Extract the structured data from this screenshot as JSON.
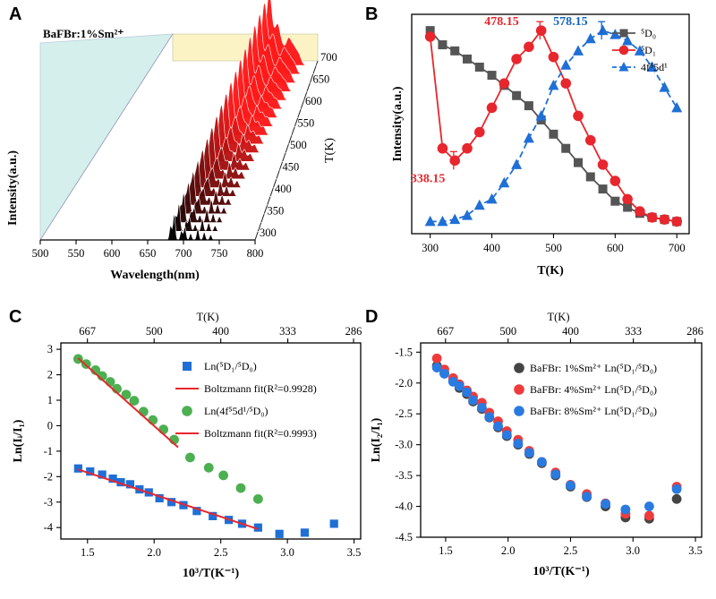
{
  "panels": {
    "A": "A",
    "B": "B",
    "C": "C",
    "D": "D"
  },
  "chart_data": [
    {
      "panel": "A",
      "type": "area",
      "title": "BaFBr:1%Sm²⁺",
      "xlabel": "Wavelength(nm)",
      "ylabel": "Intensity(a.u.)",
      "zlabel": "T(K)",
      "x_ticks": [
        "500",
        "550",
        "600",
        "650",
        "700",
        "750",
        "800"
      ],
      "z_ticks": [
        "300",
        "350",
        "400",
        "450",
        "500",
        "550",
        "600",
        "650",
        "700"
      ],
      "xlim": [
        500,
        800
      ],
      "zlim": [
        300,
        700
      ],
      "temperatures": [
        300,
        320,
        340,
        360,
        380,
        400,
        420,
        440,
        460,
        480,
        500,
        520,
        540,
        560,
        580,
        600,
        620,
        640,
        660,
        680,
        700
      ],
      "emission_peaks_nm": [
        682,
        687,
        697,
        702,
        710,
        720,
        729,
        738
      ],
      "colors": {
        "low_T": "#000000",
        "high_T": "#ff1a1a",
        "wall_back": "#fbf3c4",
        "wall_side": "#d5f0ec"
      }
    },
    {
      "panel": "B",
      "type": "line",
      "xlabel": "T(K)",
      "ylabel": "Intensity(a.u.)",
      "xlim": [
        270,
        720
      ],
      "x_ticks": [
        300,
        400,
        500,
        600,
        700
      ],
      "annotations": [
        {
          "text": "338.15",
          "x": 338,
          "y": 0.36,
          "color": "#e8262d"
        },
        {
          "text": "478.15",
          "x": 478,
          "y": 1.0,
          "color": "#e8262d"
        },
        {
          "text": "578.15",
          "x": 578,
          "y": 1.0,
          "color": "#1565c0"
        }
      ],
      "series": [
        {
          "name": "⁵D₀",
          "marker": "square",
          "color": "#555555",
          "dash": false,
          "x": [
            300,
            320,
            340,
            360,
            380,
            400,
            420,
            440,
            460,
            480,
            500,
            520,
            540,
            560,
            580,
            600,
            620,
            640,
            660,
            680,
            700
          ],
          "y": [
            1.0,
            0.93,
            0.9,
            0.86,
            0.82,
            0.78,
            0.73,
            0.68,
            0.63,
            0.56,
            0.49,
            0.42,
            0.35,
            0.28,
            0.22,
            0.16,
            0.13,
            0.1,
            0.08,
            0.07,
            0.06
          ]
        },
        {
          "name": "⁵D₁",
          "marker": "circle",
          "color": "#e8262d",
          "dash": false,
          "x": [
            300,
            320,
            340,
            360,
            380,
            400,
            420,
            440,
            460,
            480,
            500,
            520,
            540,
            560,
            580,
            600,
            620,
            640,
            660,
            680,
            700
          ],
          "y": [
            0.97,
            0.42,
            0.36,
            0.42,
            0.5,
            0.62,
            0.74,
            0.86,
            0.92,
            1.0,
            0.87,
            0.74,
            0.58,
            0.46,
            0.34,
            0.26,
            0.17,
            0.11,
            0.08,
            0.07,
            0.06
          ]
        },
        {
          "name": "4f⁵5d¹",
          "marker": "triangle",
          "color": "#1f6fd6",
          "dash": true,
          "x": [
            300,
            320,
            340,
            360,
            380,
            400,
            420,
            440,
            460,
            480,
            500,
            520,
            540,
            560,
            580,
            600,
            620,
            640,
            660,
            680,
            700
          ],
          "y": [
            0.06,
            0.06,
            0.07,
            0.09,
            0.14,
            0.17,
            0.25,
            0.34,
            0.47,
            0.58,
            0.73,
            0.83,
            0.9,
            0.96,
            1.0,
            0.98,
            0.95,
            0.9,
            0.82,
            0.72,
            0.62
          ]
        }
      ]
    },
    {
      "panel": "C",
      "type": "scatter",
      "xlabel": "10³/T(K⁻¹)",
      "ylabel": "Ln(Iᵢ/I₁)",
      "top_xlabel": "T(K)",
      "xlim": [
        1.3,
        3.55
      ],
      "ylim": [
        -4.45,
        3.25
      ],
      "x_ticks": [
        1.5,
        2.0,
        2.5,
        3.0,
        3.5
      ],
      "y_ticks": [
        -4,
        -3,
        -2,
        -1,
        0,
        1,
        2,
        3
      ],
      "top_ticks": [
        667,
        500,
        400,
        333,
        286
      ],
      "series": [
        {
          "name": "Ln(⁵D₁/⁵D₀)",
          "marker": "square",
          "color": "#1f6fd6",
          "x": [
            1.43,
            1.52,
            1.61,
            1.69,
            1.75,
            1.82,
            1.89,
            1.96,
            2.04,
            2.13,
            2.22,
            2.32,
            2.44,
            2.56,
            2.66,
            2.78,
            2.94,
            3.13,
            3.35
          ],
          "y": [
            -1.68,
            -1.8,
            -1.92,
            -2.08,
            -2.22,
            -2.3,
            -2.5,
            -2.62,
            -2.85,
            -3.0,
            -3.12,
            -3.35,
            -3.55,
            -3.7,
            -3.85,
            -4.0,
            -4.25,
            -4.2,
            -3.85
          ]
        },
        {
          "name": "Ln(4f⁵5d¹/⁵D₀)",
          "marker": "circle",
          "color": "#4caf50",
          "x": [
            1.43,
            1.49,
            1.56,
            1.61,
            1.67,
            1.72,
            1.79,
            1.85,
            1.92,
            1.99,
            2.07,
            2.15,
            2.27,
            2.41,
            2.52,
            2.65,
            2.78
          ],
          "y": [
            2.62,
            2.42,
            2.18,
            1.95,
            1.72,
            1.45,
            1.22,
            0.98,
            0.55,
            0.22,
            -0.15,
            -0.55,
            -1.25,
            -1.65,
            -1.95,
            -2.45,
            -2.88
          ]
        }
      ],
      "fits": [
        {
          "name": "Boltzmann fit(R²=0.9928)",
          "color": "#e8262d",
          "x": [
            1.43,
            2.78
          ],
          "y": [
            -1.72,
            -4.06
          ]
        },
        {
          "name": "Boltzmann fit(R²=0.9993)",
          "color": "#e8262d",
          "x": [
            1.43,
            2.18
          ],
          "y": [
            2.65,
            -0.85
          ]
        }
      ],
      "legend": [
        {
          "text": "Ln(⁵D₁/⁵D₀)",
          "kind": "square",
          "color": "#1f6fd6"
        },
        {
          "text": "Boltzmann fit(R²=0.9928)",
          "kind": "line",
          "color": "#e8262d"
        },
        {
          "text": "Ln(4f⁵5d¹/⁵D₀)",
          "kind": "circle",
          "color": "#4caf50"
        },
        {
          "text": "Boltzmann fit(R²=0.9993)",
          "kind": "line",
          "color": "#e8262d"
        }
      ]
    },
    {
      "panel": "D",
      "type": "scatter",
      "xlabel": "10³/T(K⁻¹)",
      "ylabel": "Ln(I₂/I₁)",
      "top_xlabel": "T(K)",
      "xlim": [
        1.3,
        3.55
      ],
      "ylim": [
        -4.5,
        -1.35
      ],
      "x_ticks": [
        1.5,
        2.0,
        2.5,
        3.0,
        3.5
      ],
      "y_ticks": [
        -4.5,
        -4.0,
        -3.5,
        -3.0,
        -2.5,
        -2.0,
        -1.5
      ],
      "top_ticks": [
        667,
        500,
        400,
        333,
        286
      ],
      "series": [
        {
          "name": "BaFBr: 1%Sm²⁺ Ln(⁵D₁/⁵D₀)",
          "marker": "circle",
          "color": "#444444",
          "x": [
            1.43,
            1.49,
            1.56,
            1.61,
            1.67,
            1.72,
            1.79,
            1.85,
            1.92,
            1.99,
            2.08,
            2.17,
            2.27,
            2.38,
            2.5,
            2.63,
            2.78,
            2.94,
            3.13,
            3.35
          ],
          "y": [
            -1.72,
            -1.84,
            -1.96,
            -2.08,
            -2.18,
            -2.3,
            -2.42,
            -2.56,
            -2.72,
            -2.86,
            -3.0,
            -3.15,
            -3.3,
            -3.5,
            -3.68,
            -3.85,
            -4.0,
            -4.18,
            -4.2,
            -3.88
          ]
        },
        {
          "name": "BaFBr: 4%Sm²⁺ Ln(⁵D₁/⁵D₀)",
          "marker": "circle",
          "color": "#ef3b3b",
          "x": [
            1.43,
            1.49,
            1.56,
            1.61,
            1.67,
            1.72,
            1.79,
            1.85,
            1.92,
            1.99,
            2.08,
            2.17,
            2.27,
            2.38,
            2.5,
            2.63,
            2.78,
            2.94,
            3.13,
            3.35
          ],
          "y": [
            -1.6,
            -1.78,
            -1.92,
            -2.02,
            -2.12,
            -2.22,
            -2.32,
            -2.48,
            -2.62,
            -2.78,
            -2.92,
            -3.1,
            -3.28,
            -3.45,
            -3.65,
            -3.8,
            -3.95,
            -4.12,
            -4.15,
            -3.68
          ]
        },
        {
          "name": "BaFBr: 8%Sm²⁺ Ln(⁵D₁/⁵D₀)",
          "marker": "circle",
          "color": "#2a7be0",
          "x": [
            1.43,
            1.49,
            1.56,
            1.61,
            1.67,
            1.72,
            1.79,
            1.85,
            1.92,
            1.99,
            2.08,
            2.17,
            2.27,
            2.38,
            2.5,
            2.63,
            2.78,
            2.94,
            3.13,
            3.35
          ],
          "y": [
            -1.75,
            -1.85,
            -1.98,
            -2.05,
            -2.15,
            -2.28,
            -2.4,
            -2.55,
            -2.7,
            -2.84,
            -2.98,
            -3.13,
            -3.28,
            -3.48,
            -3.66,
            -3.84,
            -3.96,
            -4.05,
            -4.0,
            -3.72
          ]
        }
      ],
      "legend": [
        {
          "text": "BaFBr: 1%Sm²⁺ Ln(⁵D₁/⁵D₀)",
          "kind": "circle",
          "color": "#444444"
        },
        {
          "text": "BaFBr: 4%Sm²⁺ Ln(⁵D₁/⁵D₀)",
          "kind": "circle",
          "color": "#ef3b3b"
        },
        {
          "text": "BaFBr: 8%Sm²⁺ Ln(⁵D₁/⁵D₀)",
          "kind": "circle",
          "color": "#2a7be0"
        }
      ]
    }
  ]
}
